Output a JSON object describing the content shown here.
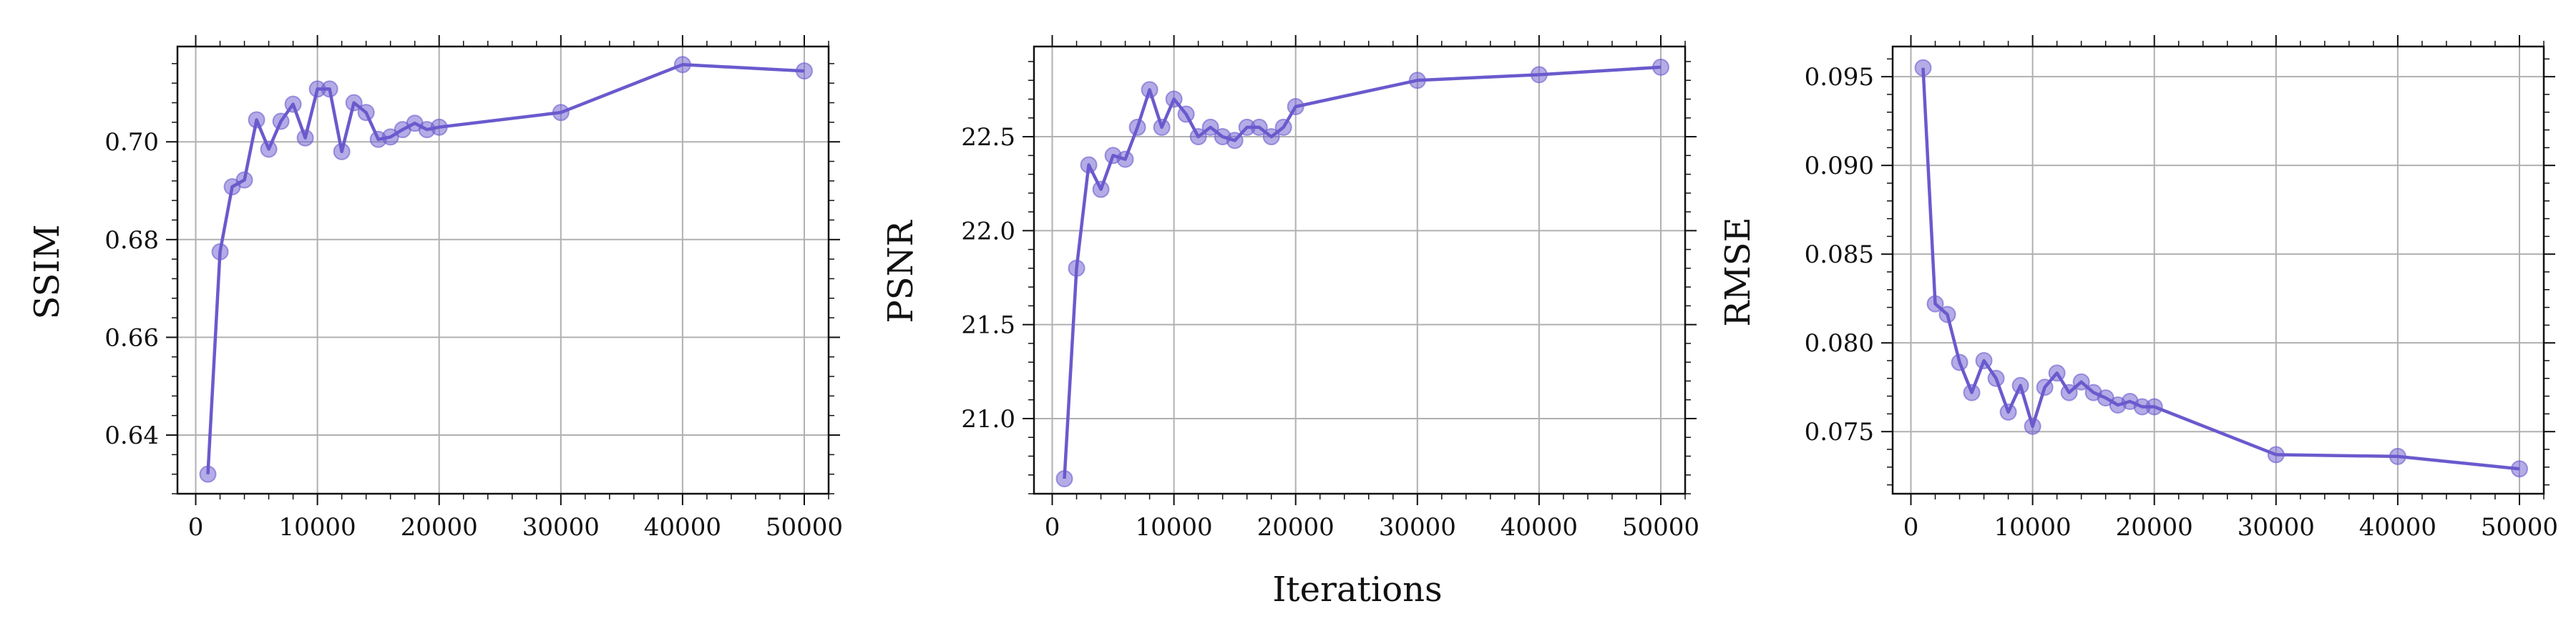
{
  "figure": {
    "shared_xlabel": "Iterations",
    "series_color": "#6a5acd"
  },
  "chart_data": [
    {
      "type": "line",
      "ylabel": "SSIM",
      "xlabel": "",
      "x": [
        1000,
        2000,
        3000,
        4000,
        5000,
        6000,
        7000,
        8000,
        9000,
        10000,
        11000,
        12000,
        13000,
        14000,
        15000,
        16000,
        17000,
        18000,
        19000,
        20000,
        30000,
        40000,
        50000
      ],
      "y": [
        0.632,
        0.6775,
        0.6908,
        0.6922,
        0.7045,
        0.6985,
        0.7042,
        0.7077,
        0.7008,
        0.7108,
        0.7108,
        0.698,
        0.708,
        0.706,
        0.7005,
        0.701,
        0.7025,
        0.7038,
        0.7025,
        0.703,
        0.706,
        0.7158,
        0.7145
      ],
      "xlim": [
        -1500,
        52000
      ],
      "ylim": [
        0.628,
        0.7195
      ],
      "xticks": [
        0,
        10000,
        20000,
        30000,
        40000,
        50000
      ],
      "yticks": [
        0.64,
        0.66,
        0.68,
        0.7
      ],
      "ytick_labels": [
        "0.64",
        "0.66",
        "0.68",
        "0.70"
      ],
      "grid": true,
      "marker": "circle"
    },
    {
      "type": "line",
      "ylabel": "PSNR",
      "xlabel": "",
      "x": [
        1000,
        2000,
        3000,
        4000,
        5000,
        6000,
        7000,
        8000,
        9000,
        10000,
        11000,
        12000,
        13000,
        14000,
        15000,
        16000,
        17000,
        18000,
        19000,
        20000,
        30000,
        40000,
        50000
      ],
      "y": [
        20.68,
        21.8,
        22.35,
        22.22,
        22.4,
        22.38,
        22.55,
        22.75,
        22.55,
        22.7,
        22.62,
        22.5,
        22.55,
        22.5,
        22.48,
        22.55,
        22.55,
        22.5,
        22.55,
        22.66,
        22.8,
        22.83,
        22.87
      ],
      "xlim": [
        -1500,
        52000
      ],
      "ylim": [
        20.6,
        22.98
      ],
      "xticks": [
        0,
        10000,
        20000,
        30000,
        40000,
        50000
      ],
      "yticks": [
        21.0,
        21.5,
        22.0,
        22.5
      ],
      "ytick_labels": [
        "21.0",
        "21.5",
        "22.0",
        "22.5"
      ],
      "grid": true,
      "marker": "circle"
    },
    {
      "type": "line",
      "ylabel": "RMSE",
      "xlabel": "",
      "x": [
        1000,
        2000,
        3000,
        4000,
        5000,
        6000,
        7000,
        8000,
        9000,
        10000,
        11000,
        12000,
        13000,
        14000,
        15000,
        16000,
        17000,
        18000,
        19000,
        20000,
        30000,
        40000,
        50000
      ],
      "y": [
        0.0955,
        0.0822,
        0.0816,
        0.0789,
        0.0772,
        0.079,
        0.078,
        0.0761,
        0.0776,
        0.0753,
        0.0775,
        0.0783,
        0.0772,
        0.0778,
        0.0772,
        0.0769,
        0.0765,
        0.0767,
        0.0764,
        0.0764,
        0.0737,
        0.0736,
        0.0729
      ],
      "xlim": [
        -1500,
        52000
      ],
      "ylim": [
        0.0715,
        0.0967
      ],
      "xticks": [
        0,
        10000,
        20000,
        30000,
        40000,
        50000
      ],
      "yticks": [
        0.075,
        0.08,
        0.085,
        0.09,
        0.095
      ],
      "ytick_labels": [
        "0.075",
        "0.080",
        "0.085",
        "0.090",
        "0.095"
      ],
      "grid": true,
      "marker": "circle"
    }
  ]
}
